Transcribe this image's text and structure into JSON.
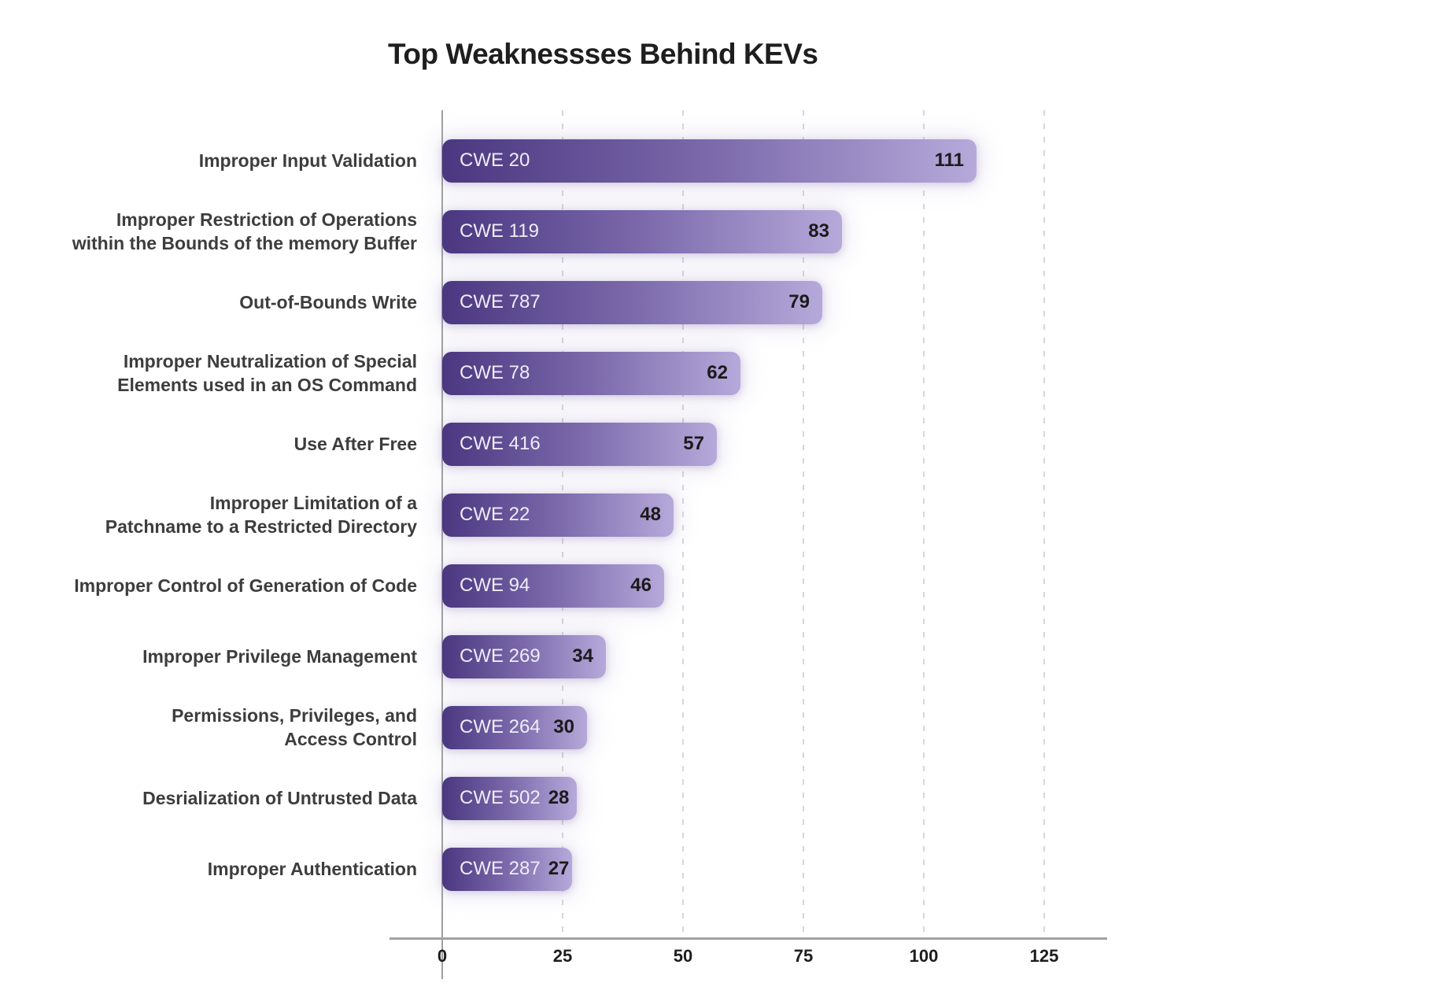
{
  "chart_data": {
    "type": "bar",
    "orientation": "horizontal",
    "title": "Top Weaknessses Behind KEVs",
    "categories": [
      "Improper Input Validation",
      "Improper Restriction of Operations within the Bounds of the memory Buffer",
      "Out-of-Bounds Write",
      "Improper Neutralization of Special Elements used in an OS Command",
      "Use After Free",
      "Improper Limitation of a Patchname to a Restricted Directory",
      "Improper Control of Generation of Code",
      "Improper Privilege Management",
      "Permissions, Privileges, and Access Control",
      "Desrialization of Untrusted Data",
      "Improper Authentication"
    ],
    "values": [
      111,
      83,
      79,
      62,
      57,
      48,
      46,
      34,
      30,
      28,
      27
    ],
    "bars": [
      {
        "label_lines": [
          "Improper Input Validation"
        ],
        "tag": "CWE 20",
        "value": 111
      },
      {
        "label_lines": [
          "Improper Restriction of Operations",
          "within the Bounds of the memory Buffer"
        ],
        "tag": "CWE 119",
        "value": 83
      },
      {
        "label_lines": [
          "Out-of-Bounds Write"
        ],
        "tag": "CWE 787",
        "value": 79
      },
      {
        "label_lines": [
          "Improper Neutralization of Special",
          "Elements used in an OS Command"
        ],
        "tag": "CWE 78",
        "value": 62
      },
      {
        "label_lines": [
          "Use After Free"
        ],
        "tag": "CWE 416",
        "value": 57
      },
      {
        "label_lines": [
          "Improper Limitation of a",
          "Patchname to a Restricted Directory"
        ],
        "tag": "CWE 22",
        "value": 48
      },
      {
        "label_lines": [
          "Improper Control of Generation of Code"
        ],
        "tag": "CWE 94",
        "value": 46
      },
      {
        "label_lines": [
          "Improper Privilege Management"
        ],
        "tag": "CWE 269",
        "value": 34
      },
      {
        "label_lines": [
          "Permissions, Privileges, and",
          "Access Control"
        ],
        "tag": "CWE 264",
        "value": 30
      },
      {
        "label_lines": [
          "Desrialization of Untrusted Data"
        ],
        "tag": "CWE 502",
        "value": 28
      },
      {
        "label_lines": [
          "Improper Authentication"
        ],
        "tag": "CWE 287",
        "value": 27
      }
    ],
    "x_ticks": [
      0,
      25,
      50,
      75,
      100,
      125
    ],
    "xlim": [
      0,
      147
    ],
    "xlabel": "",
    "ylabel": "",
    "legend": "none",
    "grid": "vertical-dashed",
    "bar_gradient_start": "#4a3780",
    "bar_gradient_end": "#b6a9da",
    "bar_tag_color": "#efecf8",
    "value_label_color": "#1b1b1b",
    "gridline_color": "#d7d6dc",
    "axis_color": "#a2a2a2"
  }
}
